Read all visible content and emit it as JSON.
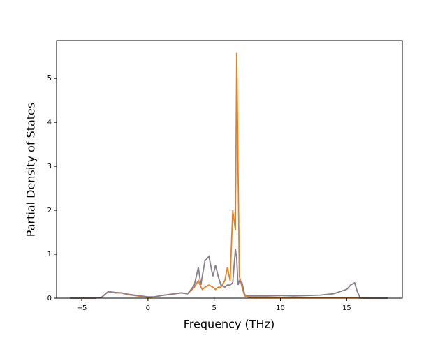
{
  "chart_data": {
    "type": "line",
    "xlabel": "Frequency (THz)",
    "ylabel": "Partial Density of States",
    "x": [
      -5.9,
      -4,
      -3.5,
      -3,
      -2.5,
      -2,
      -1.5,
      -1,
      -0.5,
      0,
      0.5,
      1,
      1.5,
      2,
      2.5,
      3,
      3.5,
      3.8,
      4.0,
      4.1,
      4.3,
      4.6,
      4.9,
      5.1,
      5.3,
      5.5,
      5.8,
      6.0,
      6.2,
      6.4,
      6.6,
      6.7,
      6.8,
      6.9,
      7.1,
      7.3,
      7.6,
      8,
      9,
      10,
      11,
      12,
      13,
      14,
      15,
      15.3,
      15.6,
      15.8,
      16,
      16.3,
      17,
      18.1
    ],
    "series": [
      {
        "color": "#e8801f",
        "values": [
          0,
          0,
          0.02,
          0.15,
          0.12,
          0.12,
          0.08,
          0.06,
          0.04,
          0.02,
          0.03,
          0.06,
          0.08,
          0.1,
          0.12,
          0.1,
          0.25,
          0.4,
          0.25,
          0.2,
          0.25,
          0.3,
          0.25,
          0.2,
          0.25,
          0.25,
          0.4,
          0.7,
          0.4,
          2.0,
          1.55,
          5.58,
          3.0,
          0.5,
          0.25,
          0.05,
          0.02,
          0.02,
          0.02,
          0.02,
          0.01,
          0.01,
          0.01,
          0.01,
          0.01,
          0.01,
          0.01,
          0.01,
          0,
          0,
          0,
          0
        ]
      },
      {
        "color": "#8a7f8e",
        "values": [
          0,
          0,
          0.02,
          0.15,
          0.13,
          0.12,
          0.09,
          0.07,
          0.05,
          0.03,
          0.03,
          0.06,
          0.08,
          0.1,
          0.12,
          0.1,
          0.3,
          0.7,
          0.3,
          0.5,
          0.85,
          0.95,
          0.5,
          0.75,
          0.5,
          0.3,
          0.25,
          0.3,
          0.3,
          0.35,
          1.12,
          0.9,
          0.3,
          0.4,
          0.35,
          0.08,
          0.05,
          0.05,
          0.05,
          0.06,
          0.05,
          0.06,
          0.07,
          0.1,
          0.2,
          0.3,
          0.35,
          0.15,
          0.02,
          0,
          0,
          0
        ]
      }
    ],
    "xlim": [
      -6.9,
      19.2
    ],
    "ylim": [
      0,
      5.86
    ],
    "xticks": [
      {
        "value": -5,
        "label": "−5"
      },
      0,
      5,
      10,
      15
    ],
    "yticks": [
      0,
      1,
      2,
      3,
      4,
      5
    ]
  }
}
